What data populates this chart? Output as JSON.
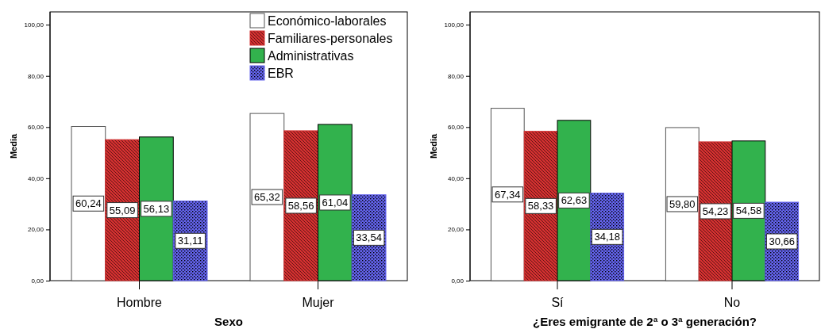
{
  "chart_data": [
    {
      "type": "bar",
      "xlabel": "Sexo",
      "ylabel": "Media",
      "categories": [
        "Hombre",
        "Mujer"
      ],
      "ylim": [
        0,
        105
      ],
      "yticks": [
        {
          "value": 0,
          "label": "0,00"
        },
        {
          "value": 20,
          "label": "20,00"
        },
        {
          "value": 40,
          "label": "40,00"
        },
        {
          "value": 60,
          "label": "60,00"
        },
        {
          "value": 80,
          "label": "80,00"
        },
        {
          "value": 100,
          "label": "100,00"
        }
      ],
      "legend": "top right",
      "series": [
        {
          "name": "Económico-laborales",
          "color": "#ffffff",
          "values": [
            60.24,
            65.32
          ],
          "value_labels": [
            "60,24",
            "65,32"
          ]
        },
        {
          "name": "Familiares-personales",
          "color": "#d33030",
          "values": [
            55.09,
            58.56
          ],
          "value_labels": [
            "55,09",
            "58,56"
          ]
        },
        {
          "name": "Administrativas",
          "color": "#32b24d",
          "values": [
            56.13,
            61.04
          ],
          "value_labels": [
            "56,13",
            "61,04"
          ]
        },
        {
          "name": "EBR",
          "color": "#6464ee",
          "values": [
            31.11,
            33.54
          ],
          "value_labels": [
            "31,11",
            "33,54"
          ]
        }
      ]
    },
    {
      "type": "bar",
      "xlabel": "¿Eres emigrante de 2ª o 3ª generación?",
      "ylabel": "Media",
      "categories": [
        "Sí",
        "No"
      ],
      "ylim": [
        0,
        105
      ],
      "yticks": [
        {
          "value": 0,
          "label": "0,00"
        },
        {
          "value": 20,
          "label": "20,00"
        },
        {
          "value": 40,
          "label": "40,00"
        },
        {
          "value": 60,
          "label": "60,00"
        },
        {
          "value": 80,
          "label": "80,00"
        },
        {
          "value": 100,
          "label": "100,00"
        }
      ],
      "series": [
        {
          "name": "Económico-laborales",
          "color": "#ffffff",
          "values": [
            67.34,
            59.8
          ],
          "value_labels": [
            "67,34",
            "59,80"
          ]
        },
        {
          "name": "Familiares-personales",
          "color": "#d33030",
          "values": [
            58.33,
            54.23
          ],
          "value_labels": [
            "58,33",
            "54,23"
          ]
        },
        {
          "name": "Administrativas",
          "color": "#32b24d",
          "values": [
            62.63,
            54.58
          ],
          "value_labels": [
            "62,63",
            "54,58"
          ]
        },
        {
          "name": "EBR",
          "color": "#6464ee",
          "values": [
            34.18,
            30.66
          ],
          "value_labels": [
            "34,18",
            "30,66"
          ]
        }
      ]
    }
  ]
}
